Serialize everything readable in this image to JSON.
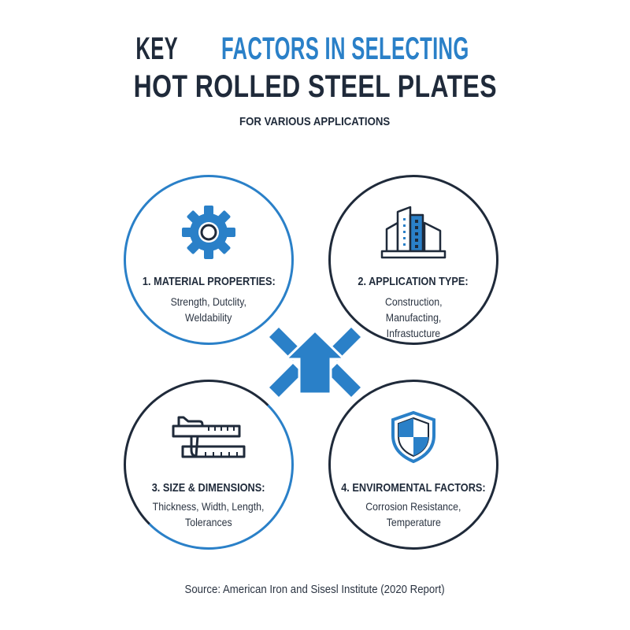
{
  "title": {
    "line1_prefix": "KEY",
    "line1_highlight": "FACTORS IN SELECTING",
    "line2": "HOT ROLLED STEEL PLATES",
    "subtitle": "FOR VARIOUS APPLICATIONS"
  },
  "colors": {
    "accent": "#2a80c8",
    "dark": "#1f2a3a"
  },
  "factors": [
    {
      "icon": "gear-icon",
      "heading": "1. MATERIAL PROPERTIES:",
      "lines": [
        "Strength, Dutclity,",
        "Weldability"
      ]
    },
    {
      "icon": "building-icon",
      "heading": "2. APPLICATION TYPE:",
      "lines": [
        "Construction,",
        "Manufacting,",
        "Infrastucture"
      ]
    },
    {
      "icon": "caliper-ruler-icon",
      "heading": "3. SIZE & DIMENSIONS:",
      "lines": [
        "Thickness, Width, Length,",
        "Tolerances"
      ]
    },
    {
      "icon": "shield-icon",
      "heading": "4. ENVIROMENTAL FACTORS:",
      "lines": [
        "Corrosion Resistance,",
        "Temperature"
      ]
    }
  ],
  "center_icon": "arrow-up-cross-icon",
  "source": "Source: American Iron and Sisesl Institute (2020 Report)"
}
